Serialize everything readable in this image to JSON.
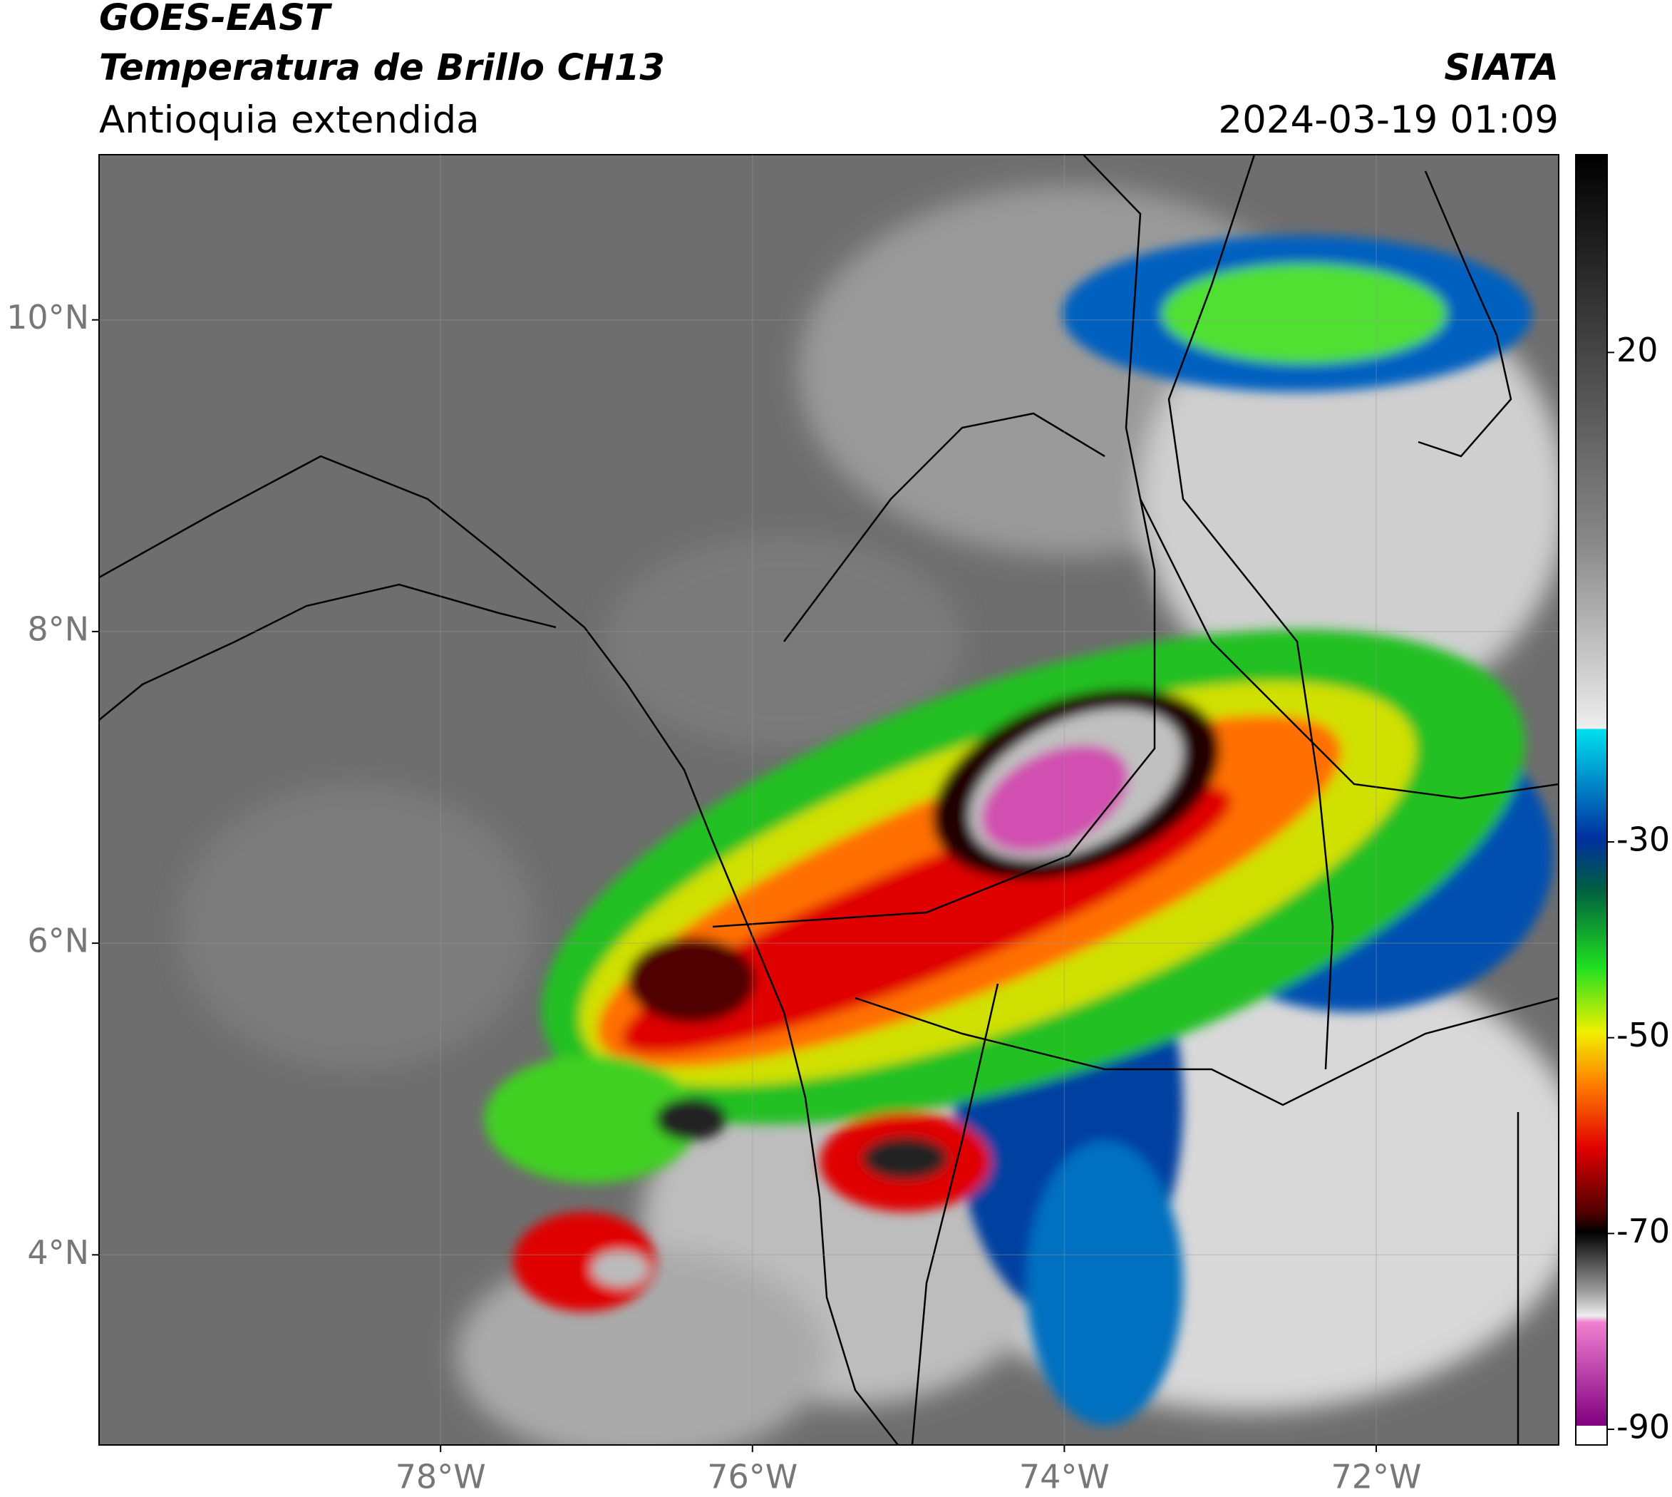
{
  "header": {
    "title": "GOES-EAST",
    "subtitle": "Temperatura de Brillo CH13",
    "region": "Antioquia extendida",
    "source": "SIATA",
    "datetime": "2024-03-19 01:09"
  },
  "map": {
    "lon_range": [
      -80.19,
      -70.83
    ],
    "lat_range": [
      2.78,
      11.06
    ],
    "lat_ticks": [
      {
        "value": 10,
        "label": "10°N"
      },
      {
        "value": 8,
        "label": "8°N"
      },
      {
        "value": 6,
        "label": "6°N"
      },
      {
        "value": 4,
        "label": "4°N"
      }
    ],
    "lon_ticks": [
      {
        "value": -78,
        "label": "78°W"
      },
      {
        "value": -76,
        "label": "76°W"
      },
      {
        "value": -74,
        "label": "74°W"
      },
      {
        "value": -72,
        "label": "72°W"
      }
    ]
  },
  "colorbar": {
    "range": [
      -91.6,
      40.2
    ],
    "ticks": [
      20,
      -30,
      -50,
      -70,
      -90
    ]
  }
}
